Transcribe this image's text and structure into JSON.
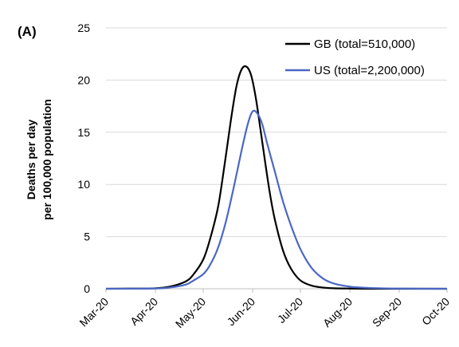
{
  "chart_data": {
    "type": "line",
    "panel_label": "(A)",
    "ylabel_lines": [
      "Deaths per day",
      "per 100,000 population"
    ],
    "xlabel": "",
    "ylim": [
      0,
      25
    ],
    "yticks": [
      0,
      5,
      10,
      15,
      20,
      25
    ],
    "xlim": [
      "2020-03-01",
      "2020-10-01"
    ],
    "xtick_labels": [
      "Mar-20",
      "Apr-20",
      "May-20",
      "Jun-20",
      "Jul-20",
      "Aug-20",
      "Sep-20",
      "Oct-20"
    ],
    "xtick_dates": [
      "2020-03-01",
      "2020-04-01",
      "2020-05-01",
      "2020-06-01",
      "2020-07-01",
      "2020-08-01",
      "2020-09-01",
      "2020-10-01"
    ],
    "grid": "horizontal",
    "legend_position": "top-right",
    "series": [
      {
        "name": "GB (total=510,000)",
        "color": "#000000",
        "x": [
          "2020-03-01",
          "2020-03-15",
          "2020-04-01",
          "2020-04-10",
          "2020-04-20",
          "2020-04-25",
          "2020-05-01",
          "2020-05-05",
          "2020-05-10",
          "2020-05-13",
          "2020-05-16",
          "2020-05-19",
          "2020-05-22",
          "2020-05-25",
          "2020-05-28",
          "2020-05-31",
          "2020-06-03",
          "2020-06-06",
          "2020-06-09",
          "2020-06-12",
          "2020-06-15",
          "2020-06-20",
          "2020-06-25",
          "2020-07-01",
          "2020-07-08",
          "2020-07-15",
          "2020-07-22",
          "2020-08-01",
          "2020-08-15",
          "2020-09-01",
          "2020-10-01"
        ],
        "y": [
          0.0,
          0.02,
          0.05,
          0.2,
          0.7,
          1.4,
          2.8,
          4.6,
          7.6,
          10.4,
          13.6,
          16.8,
          19.5,
          21.0,
          21.3,
          20.5,
          18.3,
          15.2,
          12.0,
          9.0,
          6.6,
          3.7,
          1.95,
          0.8,
          0.3,
          0.12,
          0.05,
          0.02,
          0.0,
          0.0,
          0.0
        ]
      },
      {
        "name": "US (total=2,200,000)",
        "color": "#4a67c4",
        "x": [
          "2020-03-01",
          "2020-04-01",
          "2020-04-10",
          "2020-04-20",
          "2020-04-25",
          "2020-05-01",
          "2020-05-05",
          "2020-05-10",
          "2020-05-15",
          "2020-05-20",
          "2020-05-25",
          "2020-05-29",
          "2020-06-01",
          "2020-06-04",
          "2020-06-07",
          "2020-06-10",
          "2020-06-15",
          "2020-06-20",
          "2020-06-25",
          "2020-07-01",
          "2020-07-08",
          "2020-07-15",
          "2020-07-22",
          "2020-08-01",
          "2020-08-10",
          "2020-08-20",
          "2020-09-01",
          "2020-10-01"
        ],
        "y": [
          0.0,
          0.03,
          0.12,
          0.4,
          0.8,
          1.4,
          2.2,
          3.8,
          6.3,
          9.6,
          13.2,
          15.8,
          17.0,
          16.8,
          15.8,
          14.0,
          11.2,
          8.4,
          6.1,
          3.8,
          2.0,
          1.0,
          0.5,
          0.2,
          0.1,
          0.05,
          0.02,
          0.0
        ]
      }
    ]
  }
}
